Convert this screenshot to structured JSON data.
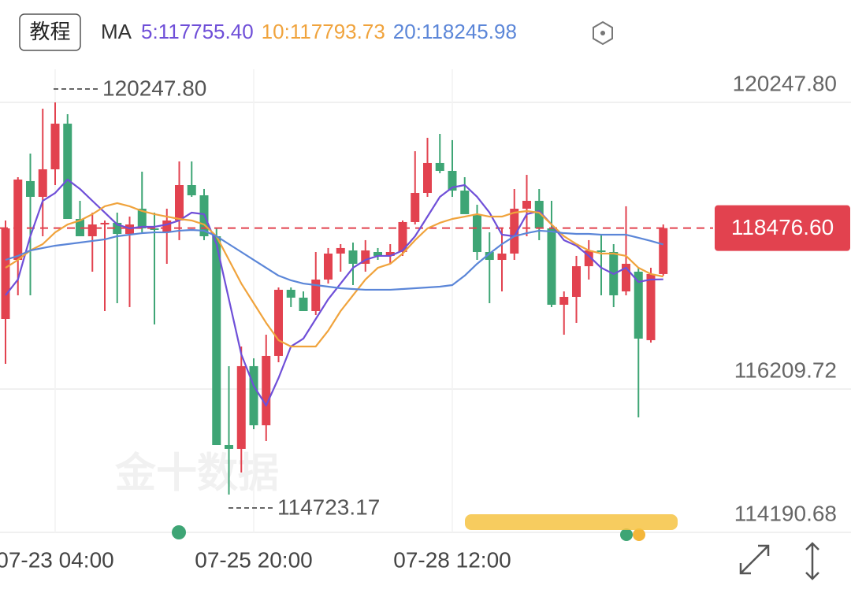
{
  "header": {
    "button": "教程"
  },
  "chart_data": {
    "type": "candlestick",
    "ma_title": "MA",
    "watermark": "金十数据",
    "max_label": "120247.80",
    "min_label": "114723.17",
    "last_price_label": "118476.60",
    "up_color": "#e2424f",
    "down_color": "#3ea575",
    "ylim": [
      114190.68,
      120713.8
    ],
    "yticks": [
      114190.68,
      116209.72,
      {
        "value": 120247.8,
        "label": "120247.80"
      }
    ],
    "grid": true,
    "categories": [
      null,
      null,
      null,
      null,
      "07-23 04:00",
      null,
      null,
      null,
      null,
      null,
      null,
      null,
      null,
      null,
      null,
      null,
      null,
      null,
      null,
      null,
      "07-25 20:00",
      null,
      null,
      null,
      null,
      null,
      null,
      null,
      null,
      null,
      null,
      null,
      null,
      null,
      null,
      null,
      "07-28 12:00",
      null,
      null,
      null,
      null,
      null,
      null,
      null,
      null,
      null,
      null,
      null,
      null,
      null,
      null,
      null,
      null,
      null
    ],
    "open": [
      117197,
      118029,
      119139,
      118917,
      119305,
      119948,
      118606,
      118362,
      118528,
      118551,
      118395,
      118750,
      118473,
      118417,
      118584,
      119083,
      118939,
      118362,
      115422,
      115367,
      116532,
      115699,
      116676,
      117608,
      117497,
      117308,
      117752,
      118118,
      118162,
      117974,
      118140,
      118085,
      118140,
      118562,
      118972,
      119394,
      119283,
      119005,
      118673,
      118140,
      118029,
      118118,
      118750,
      118861,
      118473,
      117397,
      117508,
      117940,
      118162,
      118140,
      117585,
      117863,
      116898,
      117830
    ],
    "high": [
      118584,
      119194,
      119527,
      120159,
      120247.8,
      120082,
      118861,
      118695,
      118584,
      118695,
      118639,
      119272,
      118695,
      118750,
      119416,
      119416,
      119028,
      118473,
      116532,
      116809,
      116642,
      116975,
      117641,
      117641,
      117585,
      118140,
      118196,
      118251,
      118273,
      118307,
      118196,
      118251,
      118584,
      119560,
      119749,
      119804,
      119716,
      119194,
      118806,
      118417,
      118473,
      119028,
      119227,
      119028,
      118861,
      117585,
      118085,
      118307,
      118384,
      118251,
      118784,
      117918,
      117918,
      118528
    ],
    "low": [
      116565,
      117530,
      117530,
      118362,
      119083,
      118606,
      118362,
      117863,
      117308,
      117419,
      117364,
      118417,
      117120,
      117974,
      118307,
      118917,
      118307,
      115422,
      114723.17,
      115034,
      115644,
      115478,
      116587,
      117364,
      117308,
      117253,
      117696,
      117863,
      117674,
      117863,
      118029,
      117974,
      118085,
      118528,
      118917,
      119250,
      118917,
      118695,
      118029,
      117419,
      117585,
      118029,
      118362,
      118307,
      117364,
      116975,
      117142,
      117752,
      117530,
      117364,
      117530,
      115810,
      116864,
      117807
    ],
    "close": [
      118473,
      119161,
      118917,
      119305,
      119948,
      118606,
      118362,
      118528,
      118551,
      118395,
      118528,
      118473,
      118451,
      118584,
      119083,
      118939,
      118362,
      115422,
      115367,
      116532,
      115699,
      116676,
      117608,
      117497,
      117308,
      117752,
      118118,
      118196,
      117974,
      118162,
      118085,
      118140,
      118562,
      118972,
      119394,
      119283,
      119005,
      118673,
      118140,
      118029,
      118118,
      118750,
      118861,
      118473,
      117397,
      117508,
      117940,
      118162,
      118140,
      117530,
      117974,
      116920,
      117830,
      118476.6
    ],
    "series": [
      {
        "name": "5:117755.40",
        "color": "#6f4fd8",
        "values": [
          117530,
          117752,
          118362,
          118861,
          118972,
          119161,
          119028,
          118861,
          118695,
          118528,
          118473,
          118495,
          118495,
          118528,
          118584,
          118695,
          118673,
          118251,
          117474,
          116698,
          116254,
          115977,
          116365,
          116809,
          116920,
          117197,
          117474,
          117696,
          117918,
          118029,
          118085,
          118085,
          118162,
          118362,
          118639,
          118917,
          119050,
          119083,
          118917,
          118695,
          118384,
          118362,
          118673,
          118717,
          118528,
          118307,
          118229,
          118085,
          117918,
          117830,
          117918,
          117718,
          117752,
          117755.4
        ]
      },
      {
        "name": "10:117793.73",
        "color": "#f0a33c",
        "values": [
          117918,
          118029,
          118162,
          118251,
          118417,
          118528,
          118584,
          118673,
          118784,
          118828,
          118784,
          118717,
          118673,
          118639,
          118606,
          118584,
          118528,
          118362,
          118029,
          117696,
          117419,
          117142,
          116898,
          116809,
          116809,
          116809,
          117031,
          117308,
          117530,
          117752,
          117918,
          117974,
          118118,
          118307,
          118473,
          118551,
          118606,
          118639,
          118673,
          118639,
          118639,
          118695,
          118717,
          118695,
          118528,
          118362,
          118251,
          118162,
          118118,
          118118,
          118085,
          117918,
          117830,
          117793.73
        ]
      },
      {
        "name": "20:118245.98",
        "color": "#5b86d8",
        "values": [
          118029,
          118085,
          118162,
          118196,
          118229,
          118251,
          118273,
          118296,
          118318,
          118362,
          118384,
          118406,
          118417,
          118417,
          118440,
          118451,
          118440,
          118362,
          118251,
          118140,
          118029,
          117918,
          117807,
          117741,
          117696,
          117674,
          117652,
          117630,
          117619,
          117608,
          117608,
          117608,
          117619,
          117630,
          117641,
          117652,
          117674,
          117807,
          117974,
          118118,
          118251,
          118362,
          118406,
          118440,
          118429,
          118406,
          118395,
          118395,
          118384,
          118384,
          118384,
          118340,
          118296,
          118245.98
        ]
      }
    ]
  }
}
